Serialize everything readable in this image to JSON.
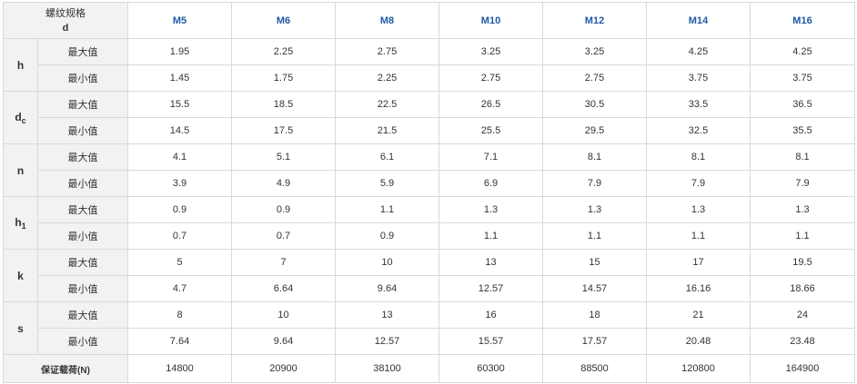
{
  "table": {
    "header": {
      "spec_line1": "螺纹规格",
      "spec_line2": "d"
    },
    "columns": [
      "M5",
      "M6",
      "M8",
      "M10",
      "M12",
      "M14",
      "M16"
    ],
    "labels": {
      "max": "最大值",
      "min": "最小值"
    },
    "params": [
      {
        "name": "h",
        "sub": "",
        "max": [
          "1.95",
          "2.25",
          "2.75",
          "3.25",
          "3.25",
          "4.25",
          "4.25"
        ],
        "min": [
          "1.45",
          "1.75",
          "2.25",
          "2.75",
          "2.75",
          "3.75",
          "3.75"
        ]
      },
      {
        "name": "d",
        "sub": "c",
        "max": [
          "15.5",
          "18.5",
          "22.5",
          "26.5",
          "30.5",
          "33.5",
          "36.5"
        ],
        "min": [
          "14.5",
          "17.5",
          "21.5",
          "25.5",
          "29.5",
          "32.5",
          "35.5"
        ]
      },
      {
        "name": "n",
        "sub": "",
        "max": [
          "4.1",
          "5.1",
          "6.1",
          "7.1",
          "8.1",
          "8.1",
          "8.1"
        ],
        "min": [
          "3.9",
          "4.9",
          "5.9",
          "6.9",
          "7.9",
          "7.9",
          "7.9"
        ]
      },
      {
        "name": "h",
        "sub": "1",
        "max": [
          "0.9",
          "0.9",
          "1.1",
          "1.3",
          "1.3",
          "1.3",
          "1.3"
        ],
        "min": [
          "0.7",
          "0.7",
          "0.9",
          "1.1",
          "1.1",
          "1.1",
          "1.1"
        ]
      },
      {
        "name": "k",
        "sub": "",
        "max": [
          "5",
          "7",
          "10",
          "13",
          "15",
          "17",
          "19.5"
        ],
        "min": [
          "4.7",
          "6.64",
          "9.64",
          "12.57",
          "14.57",
          "16.16",
          "18.66"
        ]
      },
      {
        "name": "s",
        "sub": "",
        "max": [
          "8",
          "10",
          "13",
          "16",
          "18",
          "21",
          "24"
        ],
        "min": [
          "7.64",
          "9.64",
          "12.57",
          "15.57",
          "17.57",
          "20.48",
          "23.48"
        ]
      }
    ],
    "footer": {
      "label": "保证载荷(N)",
      "values": [
        "14800",
        "20900",
        "38100",
        "60300",
        "88500",
        "120800",
        "164900"
      ]
    }
  }
}
